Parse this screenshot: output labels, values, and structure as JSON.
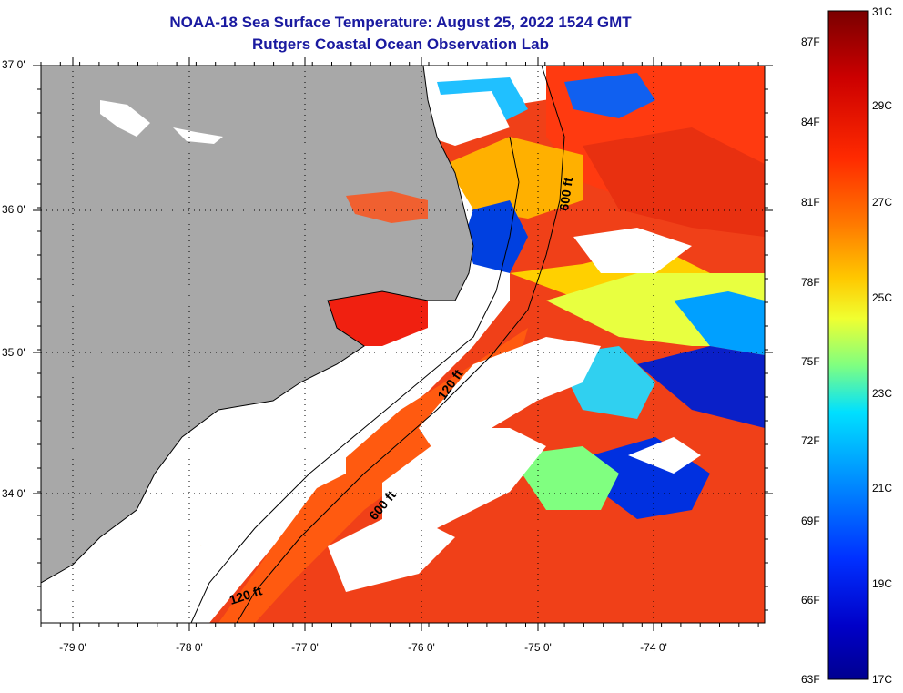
{
  "title": {
    "line1": "NOAA-18 Sea Surface Temperature:  August 25, 2022 1524 GMT",
    "line2": "Rutgers Coastal Ocean Observation Lab"
  },
  "axes": {
    "latitude_labels": [
      "37 0'",
      "36 0'",
      "35 0'",
      "34 0'"
    ],
    "longitude_labels": [
      "-79 0'",
      "-78 0'",
      "-77 0'",
      "-76 0'",
      "-75 0'",
      "-74 0'"
    ]
  },
  "contours": {
    "labels": [
      "600 ft",
      "120 ft",
      "600 ft",
      "120 ft"
    ]
  },
  "colorbar": {
    "fahrenheit_labels": [
      "87F",
      "84F",
      "81F",
      "78F",
      "75F",
      "72F",
      "69F",
      "66F",
      "63F"
    ],
    "celsius_labels": [
      "31C",
      "29C",
      "27C",
      "25C",
      "23C",
      "21C",
      "19C",
      "17C"
    ],
    "colors": [
      "#8b0000",
      "#e01010",
      "#ff5a00",
      "#ffa500",
      "#ffff00",
      "#7fff7f",
      "#00ffff",
      "#0080ff",
      "#0000e0",
      "#00008b"
    ]
  },
  "map_colors": {
    "land": "#a8a8a8",
    "cloud": "#ffffff"
  }
}
